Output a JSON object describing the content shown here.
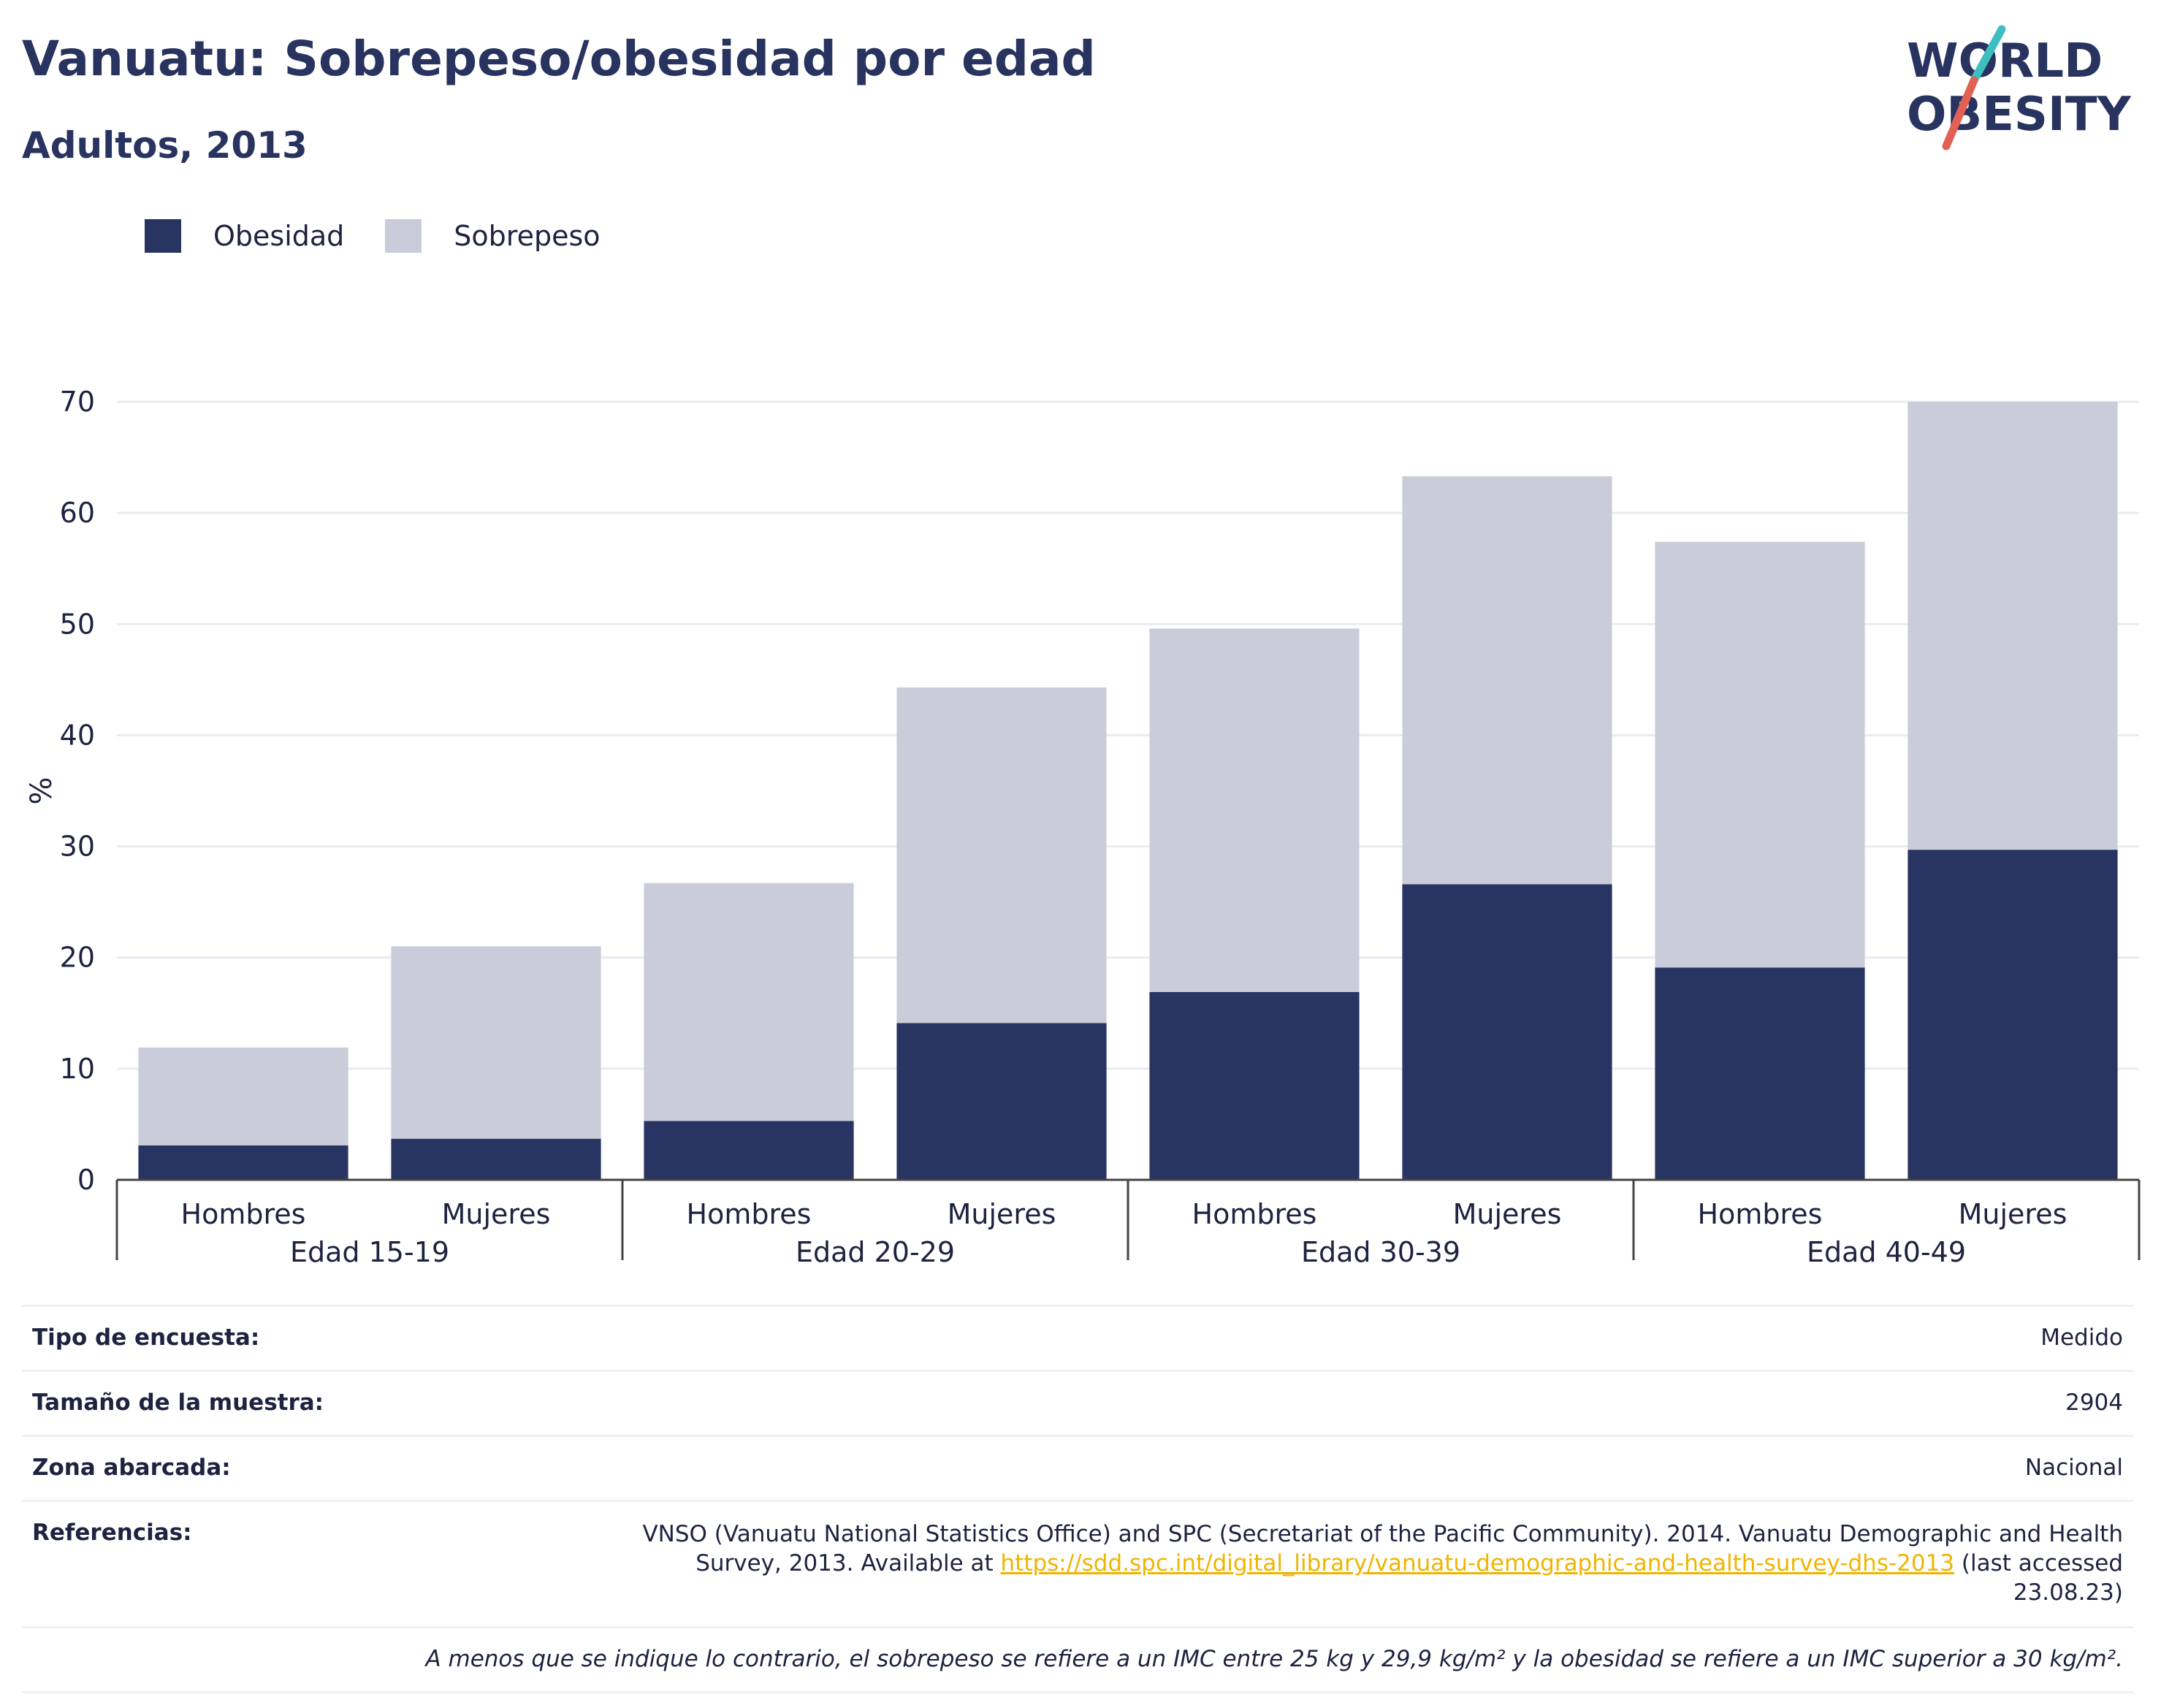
{
  "header": {
    "title": "Vanuatu: Sobrepeso/obesidad por edad",
    "subtitle": "Adultos, 2013"
  },
  "logo": {
    "line1": "WORLD",
    "line2": "OBESITY",
    "icon": "world-obesity-logo"
  },
  "legend": {
    "obesity_label": "Obesidad",
    "overweight_label": "Sobrepeso"
  },
  "colors": {
    "obesity": "#283562",
    "overweight": "#cacdd9",
    "grid": "#e9ebf1",
    "axis": "#444444",
    "link": "#f0b400",
    "logo_teal": "#3ebfbf",
    "logo_red": "#e26155"
  },
  "chart_data": {
    "type": "bar",
    "stacked": true,
    "ylabel": "%",
    "ylim": [
      0,
      70
    ],
    "yticks": [
      0,
      10,
      20,
      30,
      40,
      50,
      60,
      70
    ],
    "grid": true,
    "legend_position": "top-left",
    "groups": [
      "Edad 15-19",
      "Edad 20-29",
      "Edad 30-39",
      "Edad 40-49"
    ],
    "categories": [
      "Hombres",
      "Mujeres",
      "Hombres",
      "Mujeres",
      "Hombres",
      "Mujeres",
      "Hombres",
      "Mujeres"
    ],
    "series": [
      {
        "name": "Obesidad",
        "values": [
          3.1,
          3.7,
          5.3,
          14.1,
          16.9,
          26.6,
          19.1,
          29.7
        ]
      },
      {
        "name": "Sobrepeso",
        "values": [
          8.8,
          17.3,
          21.4,
          30.2,
          32.7,
          36.7,
          38.3,
          40.3
        ]
      }
    ]
  },
  "info": {
    "survey_type_label": "Tipo de encuesta:",
    "survey_type_value": "Medido",
    "sample_size_label": "Tamaño de la muestra:",
    "sample_size_value": "2904",
    "area_label": "Zona abarcada:",
    "area_value": "Nacional",
    "references_label": "Referencias:",
    "references_text_1": "VNSO (Vanuatu National Statistics Office) and SPC (Secretariat of the Pacific Community). 2014. Vanuatu Demographic and Health Survey, 2013. Available at",
    "references_link": "https://sdd.spc.int/digital_library/vanuatu-demographic-and-health-survey-dhs-2013",
    "references_text_2": "(last accessed 23.08.23)",
    "note": "A menos que se indique lo contrario, el sobrepeso se refiere a un IMC entre 25 kg y 29,9 kg/m² y la obesidad se refiere a un IMC superior a 30 kg/m²."
  }
}
